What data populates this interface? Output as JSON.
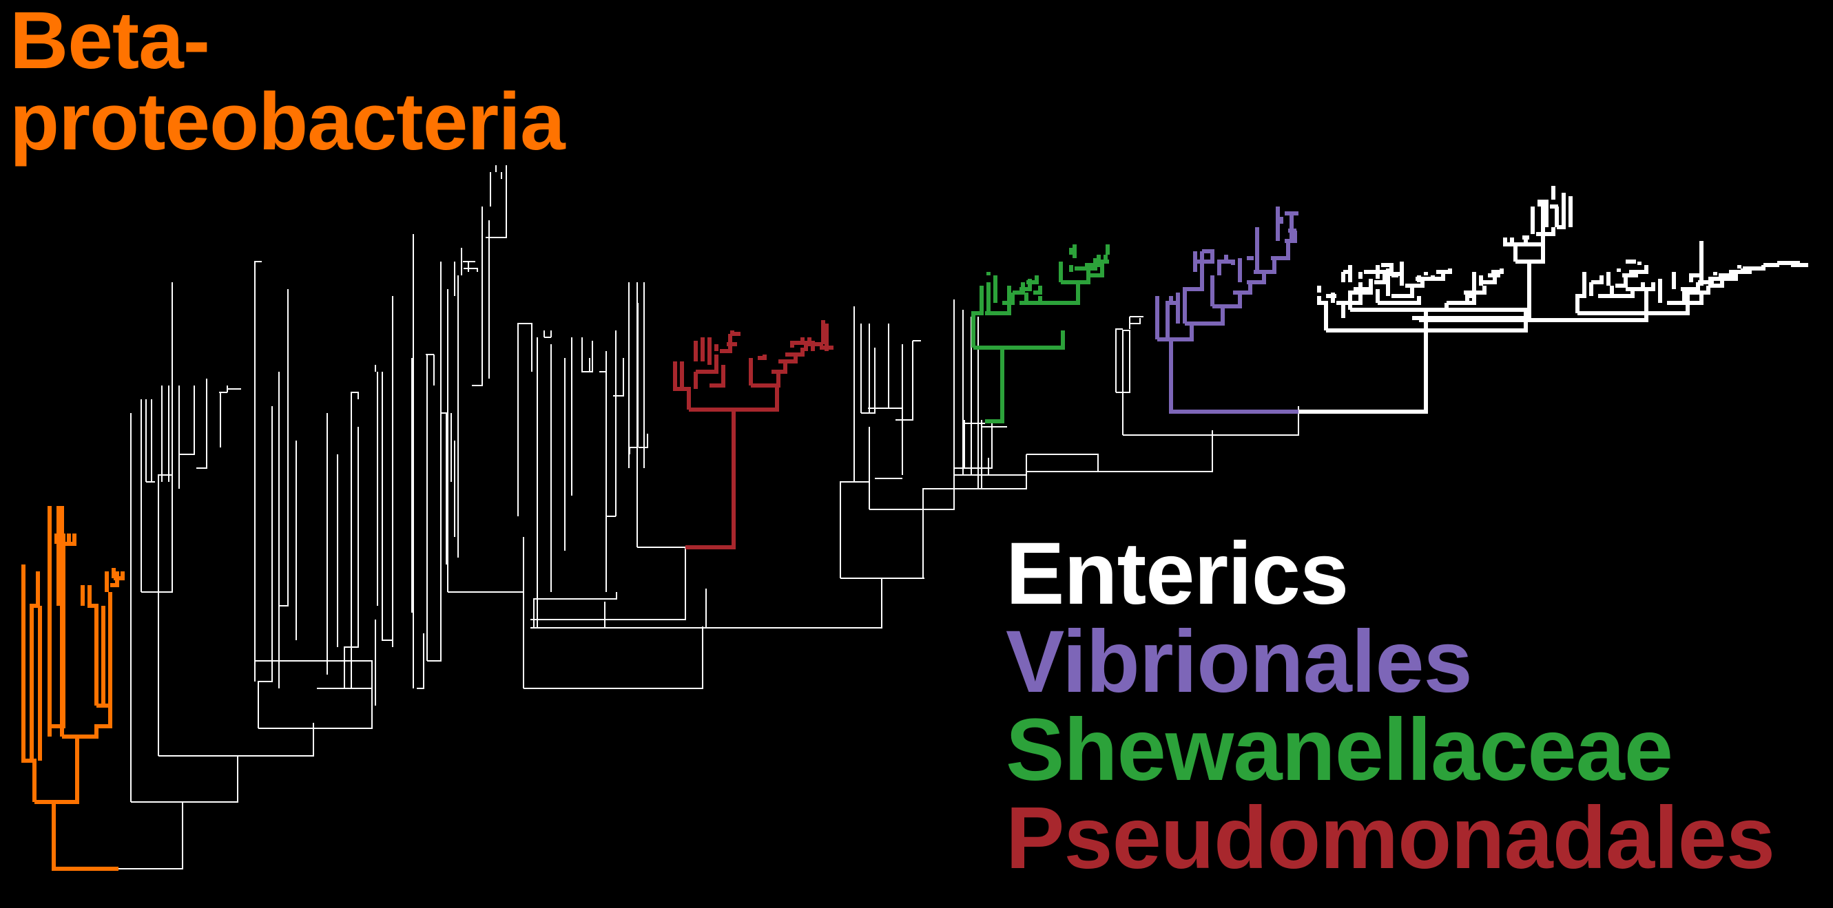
{
  "title_label": {
    "line1": "Beta-",
    "line2": "proteobacteria",
    "color": "#ff7300"
  },
  "legend": [
    {
      "name": "Enterics",
      "color": "#ffffff"
    },
    {
      "name": "Vibrionales",
      "color": "#7d66b8"
    },
    {
      "name": "Shewanellaceae",
      "color": "#2ca23a"
    },
    {
      "name": "Pseudomonadales",
      "color": "#a8272d"
    }
  ],
  "clade_colors": {
    "background_tree": "#ffffff",
    "betaproteobacteria": "#ff7300",
    "pseudomonadales": "#a8272d",
    "shewanellaceae": "#2ca23a",
    "vibrionales": "#7d66b8",
    "enterics": "#ffffff"
  }
}
